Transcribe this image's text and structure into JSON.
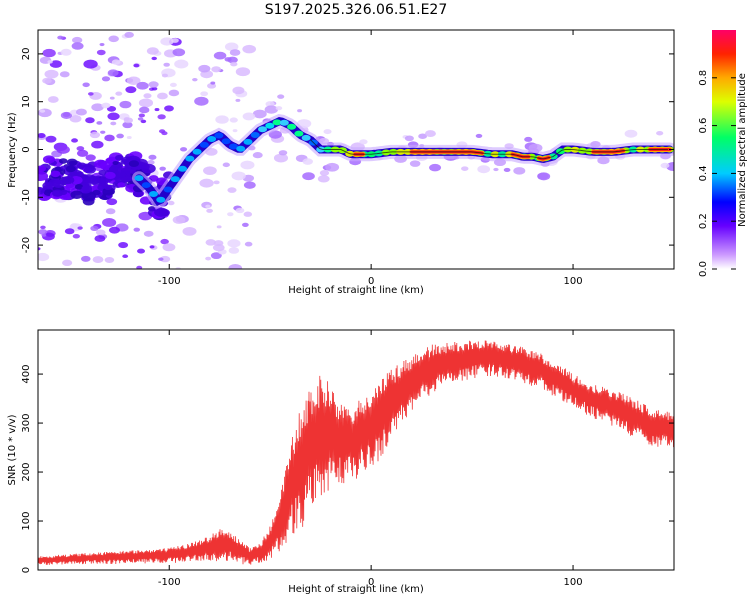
{
  "figure_title": "S197.2025.326.06.51.E27",
  "colors": {
    "snr_line": "#ee3333",
    "axis": "#000000",
    "track_dark": "#111111"
  },
  "chart_data": [
    {
      "type": "heatmap",
      "title": "S197.2025.326.06.51.E27",
      "xlabel": "Height of straight line (km)",
      "ylabel": "Frequency (Hz)",
      "xlim": [
        -165,
        150
      ],
      "ylim": [
        -25,
        25
      ],
      "x_ticks": [
        -100,
        0,
        100
      ],
      "y_ticks": [
        -20,
        -10,
        0,
        10,
        20
      ],
      "colorbar": {
        "label": "Normalized spectral amplitude",
        "range": [
          0,
          1
        ],
        "ticks": [
          0.0,
          0.2,
          0.4,
          0.6,
          0.8
        ],
        "colormap": "rainbow (white-violet-blue-cyan-green-yellow-orange-red-magenta)"
      },
      "ridge": {
        "description": "Dominant spectral component (frequency vs height)",
        "x": [
          -165,
          -150,
          -140,
          -130,
          -120,
          -110,
          -105,
          -100,
          -95,
          -90,
          -85,
          -80,
          -75,
          -70,
          -65,
          -60,
          -55,
          -50,
          -45,
          -40,
          -35,
          -30,
          -25,
          -20,
          -15,
          -10,
          0,
          10,
          20,
          30,
          40,
          50,
          60,
          70,
          75,
          80,
          85,
          90,
          95,
          100,
          110,
          120,
          130,
          140,
          148
        ],
        "y": [
          -6,
          -6,
          -7,
          -6,
          -4,
          -8,
          -11,
          -8,
          -5,
          -2,
          0,
          2,
          3,
          1,
          0,
          2,
          4,
          5,
          6,
          5,
          3,
          2,
          0,
          0,
          0,
          -1,
          -1,
          -0.5,
          -0.5,
          -0.5,
          -0.5,
          -0.5,
          -1,
          -1,
          -1.5,
          -1.5,
          -2,
          -1.5,
          0,
          0,
          -0.5,
          -0.5,
          0,
          0,
          0
        ]
      }
    },
    {
      "type": "line",
      "title": "",
      "xlabel": "Height of straight line (km)",
      "ylabel": "SNR (10 * v/v)",
      "xlim": [
        -165,
        150
      ],
      "ylim": [
        0,
        490
      ],
      "x_ticks": [
        -100,
        0,
        100
      ],
      "y_ticks": [
        0,
        100,
        200,
        300,
        400
      ],
      "series": [
        {
          "name": "SNR",
          "envelope_x": [
            -165,
            -140,
            -120,
            -100,
            -90,
            -80,
            -75,
            -70,
            -60,
            -55,
            -50,
            -45,
            -40,
            -35,
            -30,
            -25,
            -20,
            -15,
            -10,
            -5,
            0,
            10,
            20,
            30,
            40,
            50,
            60,
            70,
            80,
            90,
            100,
            110,
            120,
            130,
            140,
            150
          ],
          "envelope_low": [
            10,
            12,
            12,
            14,
            16,
            18,
            18,
            15,
            10,
            12,
            20,
            35,
            60,
            80,
            110,
            140,
            160,
            170,
            180,
            190,
            200,
            260,
            320,
            360,
            380,
            390,
            395,
            390,
            375,
            355,
            330,
            310,
            290,
            270,
            250,
            250
          ],
          "envelope_high": [
            28,
            35,
            40,
            45,
            55,
            70,
            85,
            80,
            45,
            55,
            90,
            160,
            260,
            330,
            370,
            400,
            380,
            340,
            330,
            350,
            370,
            410,
            440,
            460,
            465,
            470,
            470,
            460,
            450,
            430,
            400,
            380,
            370,
            350,
            330,
            320
          ]
        }
      ]
    }
  ]
}
